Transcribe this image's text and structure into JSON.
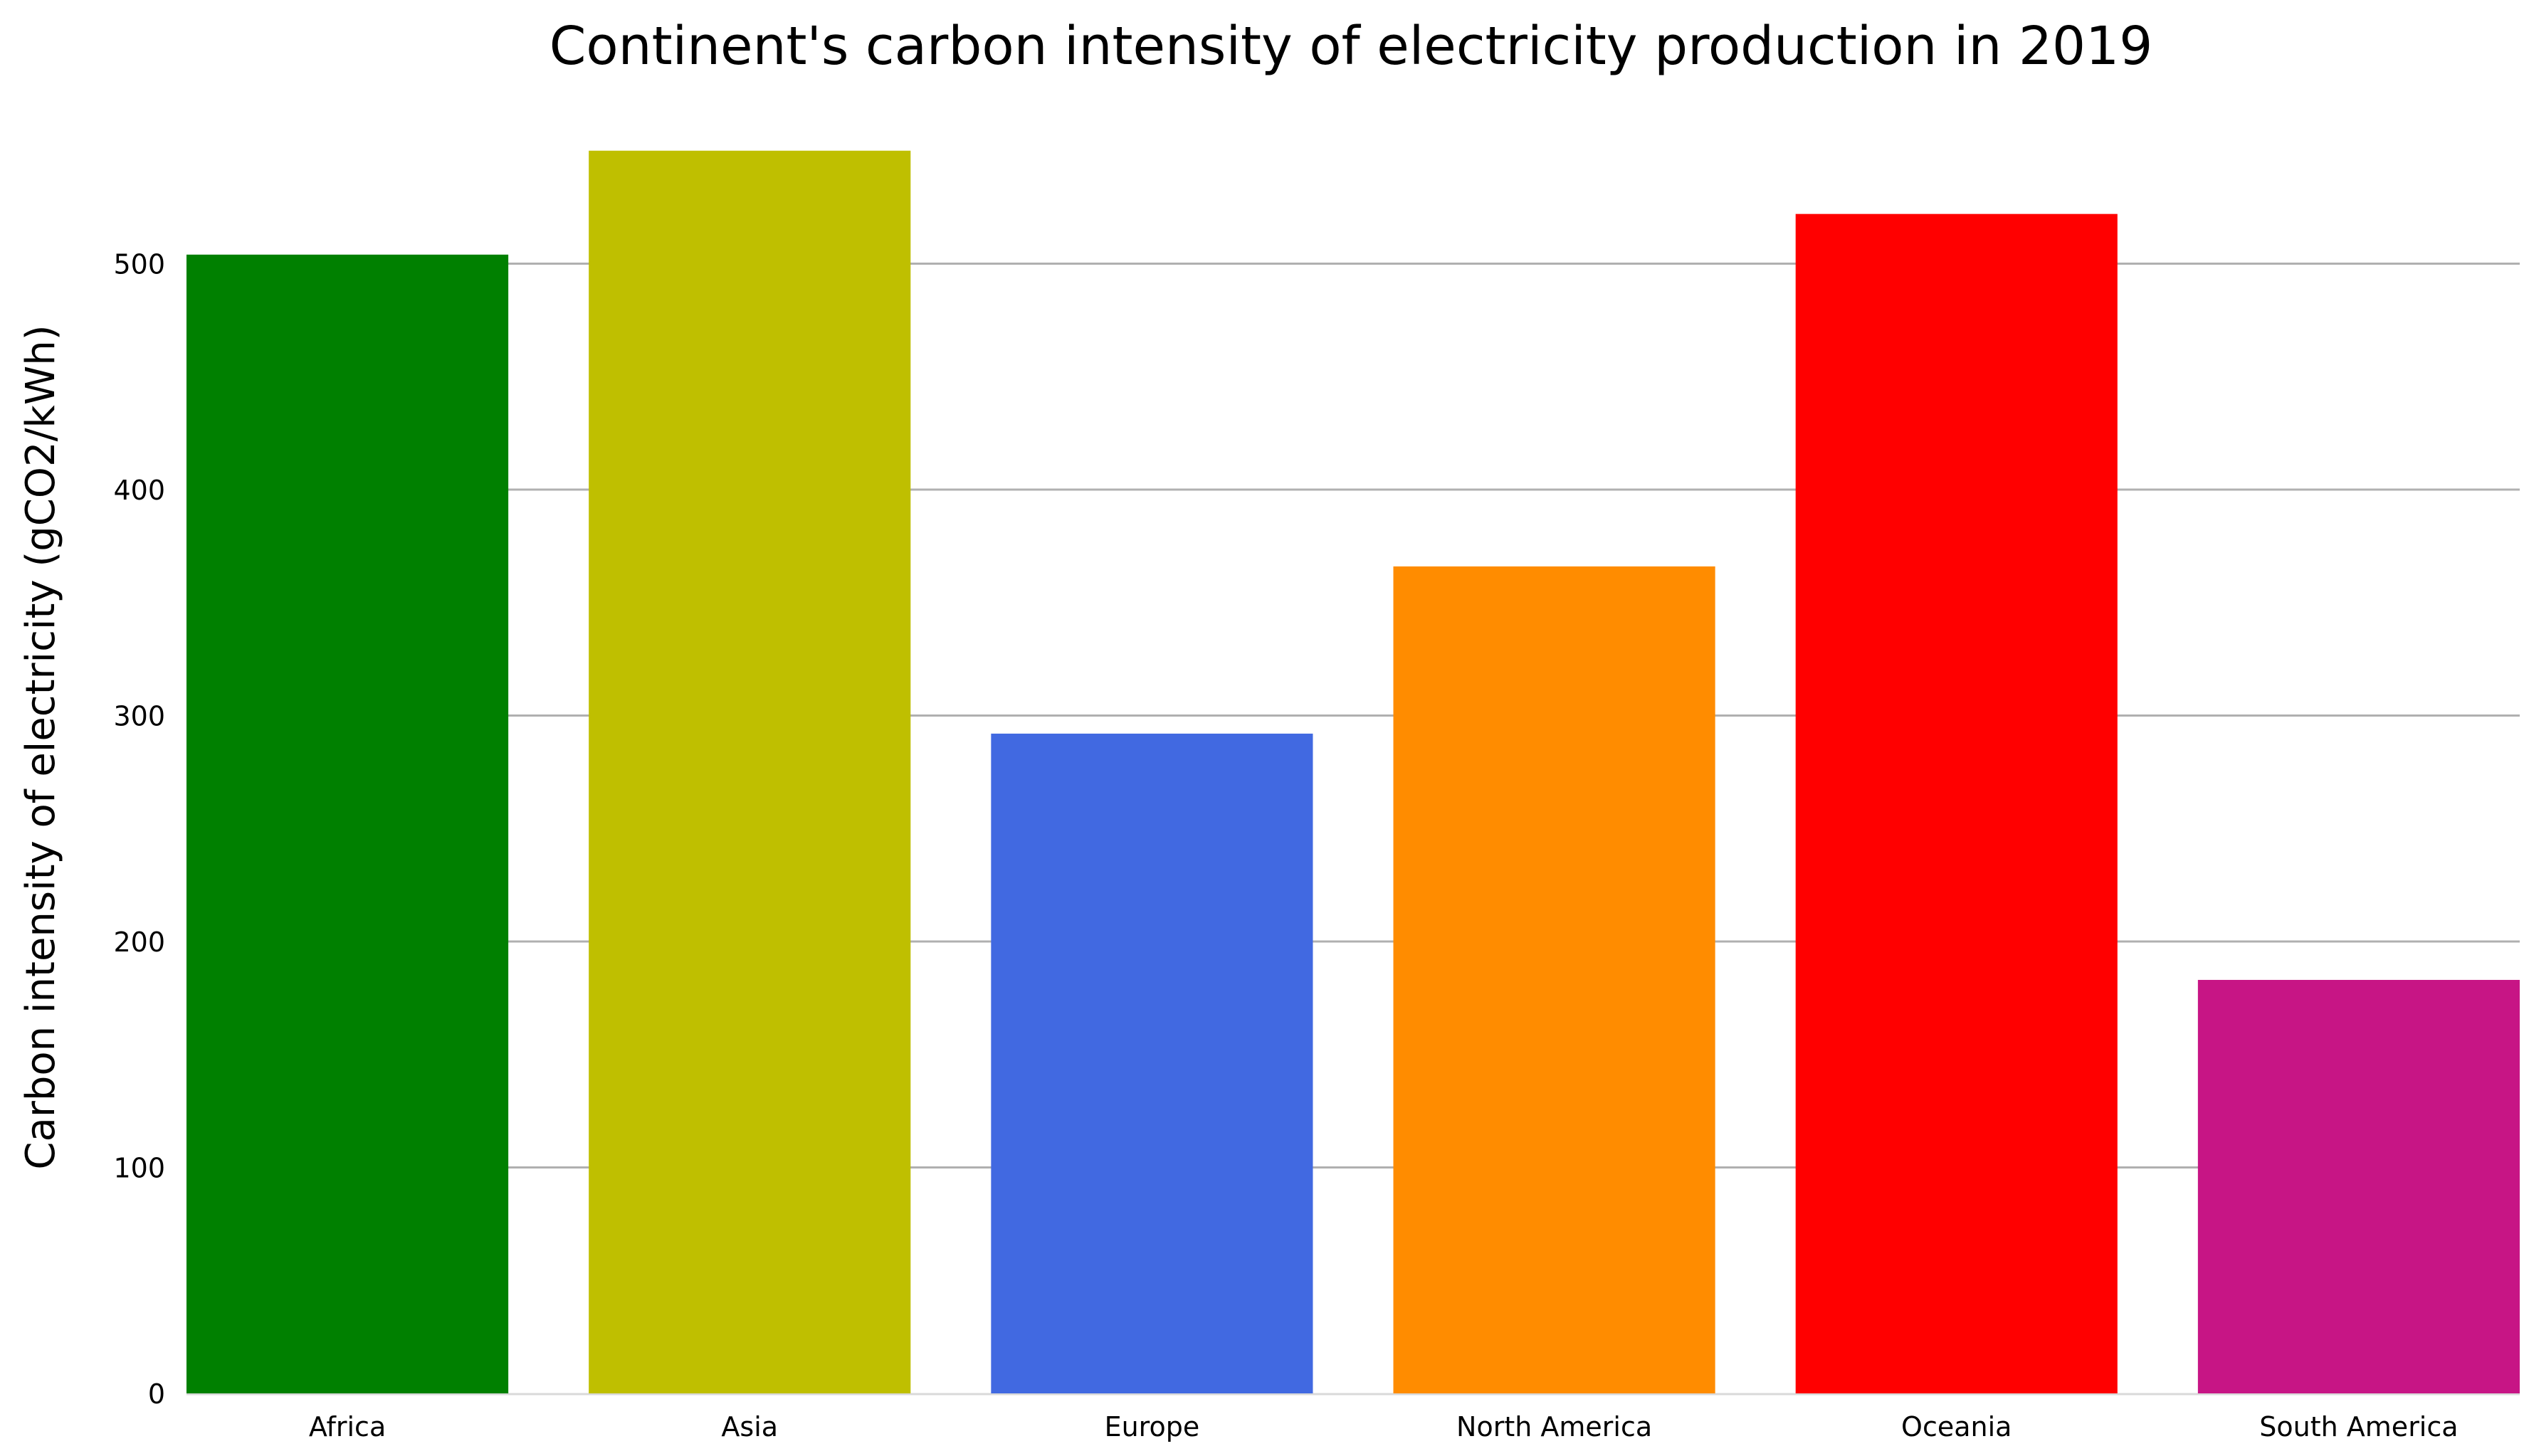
{
  "chart_data": {
    "type": "bar",
    "title": "Continent's carbon intensity of electricity production in 2019",
    "xlabel": "",
    "ylabel": "Carbon intensity of electricity (gCO2/kWh)",
    "categories": [
      "Africa",
      "Asia",
      "Europe",
      "North America",
      "Oceania",
      "South America"
    ],
    "values": [
      504,
      550,
      292,
      366,
      522,
      183
    ],
    "colors": [
      "#008000",
      "#bfbf00",
      "#4169e1",
      "#ff8c00",
      "#ff0000",
      "#c71585"
    ],
    "ylim": [
      0,
      560
    ],
    "yticks": [
      0,
      100,
      200,
      300,
      400,
      500
    ],
    "grid": true,
    "grid_axis": "y",
    "legend": "none"
  }
}
